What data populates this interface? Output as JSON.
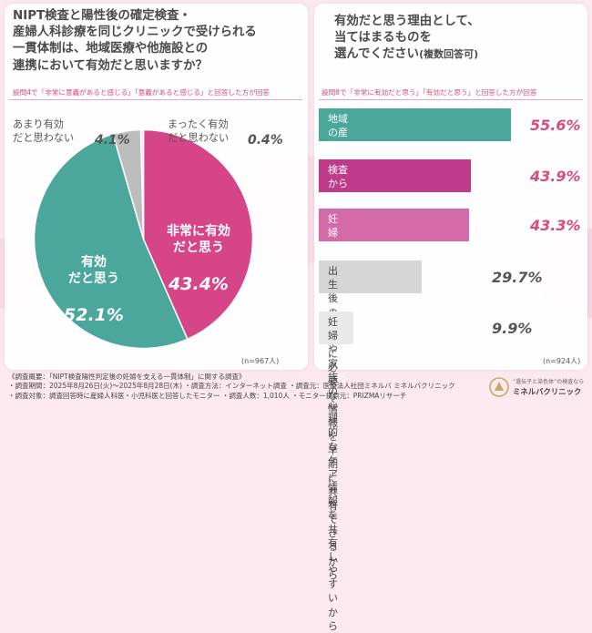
{
  "left": {
    "title": "NIPT検査と陽性後の確定検査・\n産婦人科診療を同じクリニックで受けられる\n一貫体制は、地域医療や他施設との\n連携において有効だと思いますか？",
    "note": "設問4で「非常に意義があると感じる」「意義があると感じる」と回答した方が回答",
    "n_label": "(n=967人)"
  },
  "right": {
    "title": "有効だと思う理由として、\n当てはまるものを\n選んでください",
    "title_suffix": "(複数回答可)",
    "note": "設問8で「非常に有効だと思う」「有効だと思う」と回答した方が回答",
    "n_label": "(n=924人)"
  },
  "chart_data": [
    {
      "type": "pie",
      "unit": "%",
      "categories": [
        "非常に有効だと思う",
        "有効だと思う",
        "あまり有効だと思わない",
        "まったく有効だと思わない"
      ],
      "labels": [
        {
          "text": "非常に有効\nだと思う",
          "value": "43.4%"
        },
        {
          "text": "有効\nだと思う",
          "value": "52.1%"
        },
        {
          "text": "あまり有効\nだと思わない",
          "value": "4.1%"
        },
        {
          "text": "まったく有効\nだと思わない",
          "value": "0.4%"
        }
      ],
      "values": [
        43.4,
        52.1,
        4.1,
        0.4
      ],
      "colors": [
        "#d64587",
        "#4ba69c",
        "#bdbdbd",
        "#e6e6e6"
      ]
    },
    {
      "type": "bar",
      "orientation": "horizontal",
      "unit": "%",
      "categories": [
        "地域の産婦人科や小児科への\n紹介・逆紹介がスムーズになるから",
        "検査から診療までの情報が一元化\nされ、他施設に共有しやすいから",
        "妊婦や家族への\n説明内容を統一できるから",
        "出生後の支援に必要な情報を\n早期に共有できるから",
        "妊婦や家族の心理的な\nケア情報を共有しやすいから"
      ],
      "values": [
        55.6,
        43.9,
        43.3,
        29.7,
        9.9
      ],
      "value_labels": [
        "55.6%",
        "43.9%",
        "43.3%",
        "29.7%",
        "9.9%"
      ],
      "colors": [
        "#4ba69c",
        "#c03a8a",
        "#d56aa9",
        "#d6d6d6",
        "#e9e9e9"
      ]
    }
  ],
  "footer": {
    "lines": [
      "《調査概要：「NIPT検査陽性判定後の妊婦を支える一貫体制」に関する調査》",
      "・調査期間：2025年8月26日(火)〜2025年8月28日(木) ・調査方法：インターネット調査 ・調査元：医療法人社団ミネルバ ミネルバクリニック",
      "・調査対象：調査回答時に産婦人科医・小児科医と回答したモニター ・調査人数：1,010人 ・モニター提供元：PRIZMAリサーチ"
    ]
  },
  "logo": {
    "tagline": "“遺伝子と染色体”の検査なら",
    "name": "ミネルバクリニック",
    "icon": "minerva-logo-icon"
  }
}
